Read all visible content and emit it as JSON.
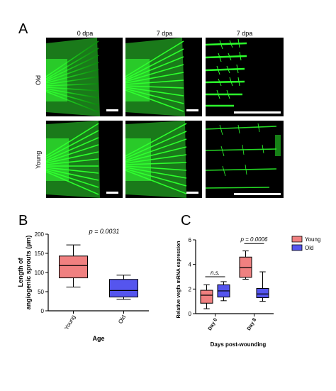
{
  "figure": {
    "panel_a_letter": "A",
    "panel_b_letter": "B",
    "panel_c_letter": "C",
    "col_labels": [
      "0 dpa",
      "7 dpa",
      "7 dpa"
    ],
    "row_labels": [
      "Old",
      "Young"
    ]
  },
  "chart_data": [
    {
      "type": "boxplot",
      "panel": "B",
      "categories": [
        "Young",
        "Old"
      ],
      "colors": [
        "#f08080",
        "#5555ee"
      ],
      "boxes": [
        {
          "name": "Young",
          "min": 62,
          "q1": 86,
          "median": 118,
          "q3": 143,
          "max": 172
        },
        {
          "name": "Old",
          "min": 30,
          "q1": 36,
          "median": 53,
          "q3": 82,
          "max": 93
        }
      ],
      "ylabel": "Length of\nangiogenic sprouts (µm)",
      "ylabel_line1": "Length of",
      "ylabel_line2": "angiogenic sprouts (µm)",
      "xlabel": "Age",
      "ylim": [
        0,
        200
      ],
      "yticks": [
        0,
        50,
        100,
        150,
        200
      ],
      "annotation": "p = 0.0031"
    },
    {
      "type": "boxplot",
      "panel": "C",
      "categories": [
        "Day 0",
        "Day 8"
      ],
      "series": [
        {
          "name": "Young",
          "color": "#f08080",
          "boxes": [
            {
              "min": 0.4,
              "q1": 0.85,
              "median": 1.5,
              "q3": 1.9,
              "max": 2.35
            },
            {
              "min": 2.8,
              "q1": 2.95,
              "median": 3.75,
              "q3": 4.6,
              "max": 5.1
            }
          ]
        },
        {
          "name": "Old",
          "color": "#5555ee",
          "boxes": [
            {
              "min": 1.05,
              "q1": 1.35,
              "median": 1.85,
              "q3": 2.35,
              "max": 2.6
            },
            {
              "min": 1.0,
              "q1": 1.3,
              "median": 1.6,
              "q3": 2.05,
              "max": 3.4
            }
          ]
        }
      ],
      "ylabel": "Relative vegfa mRNA expression",
      "xlabel": "Days post-wounding",
      "ylim": [
        0,
        6
      ],
      "yticks": [
        0,
        2,
        4,
        6
      ],
      "annotations": [
        "n.s.",
        "p = 0.0006"
      ],
      "legend": [
        "Young",
        "Old"
      ],
      "legend_position": "right"
    }
  ]
}
